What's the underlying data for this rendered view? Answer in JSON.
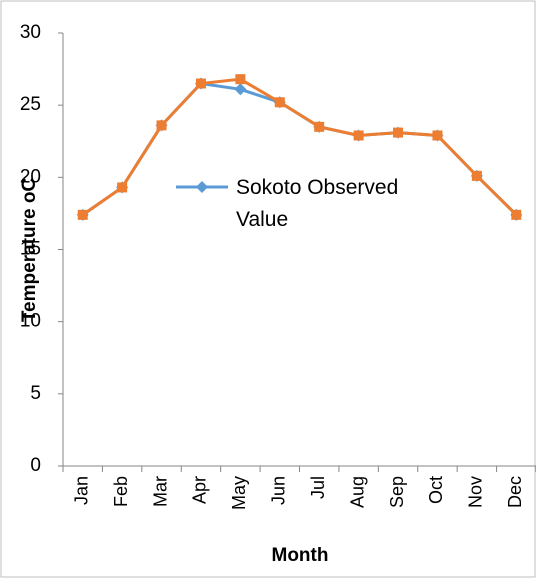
{
  "chart_data": {
    "type": "line",
    "x_label": "Month",
    "y_label": "Temperature oC",
    "categories": [
      "Jan",
      "Feb",
      "Mar",
      "Apr",
      "May",
      "Jun",
      "Jul",
      "Aug",
      "Sep",
      "Oct",
      "Nov",
      "Dec"
    ],
    "series": [
      {
        "name": "Sokoto Observed Value",
        "color": "#5b9bd5",
        "marker": "diamond",
        "values": [
          17.4,
          19.3,
          23.6,
          26.5,
          26.1,
          25.2,
          23.5,
          22.9,
          23.1,
          22.9,
          20.1,
          17.4
        ]
      },
      {
        "color": "#ed7d31",
        "marker": "square",
        "values": [
          17.4,
          19.3,
          23.6,
          26.5,
          26.8,
          25.2,
          23.5,
          22.9,
          23.1,
          22.9,
          20.1,
          17.4
        ]
      }
    ],
    "ylim": [
      0,
      30
    ],
    "yticks": [
      0,
      5,
      10,
      15,
      20,
      25,
      30
    ],
    "grid": false
  }
}
